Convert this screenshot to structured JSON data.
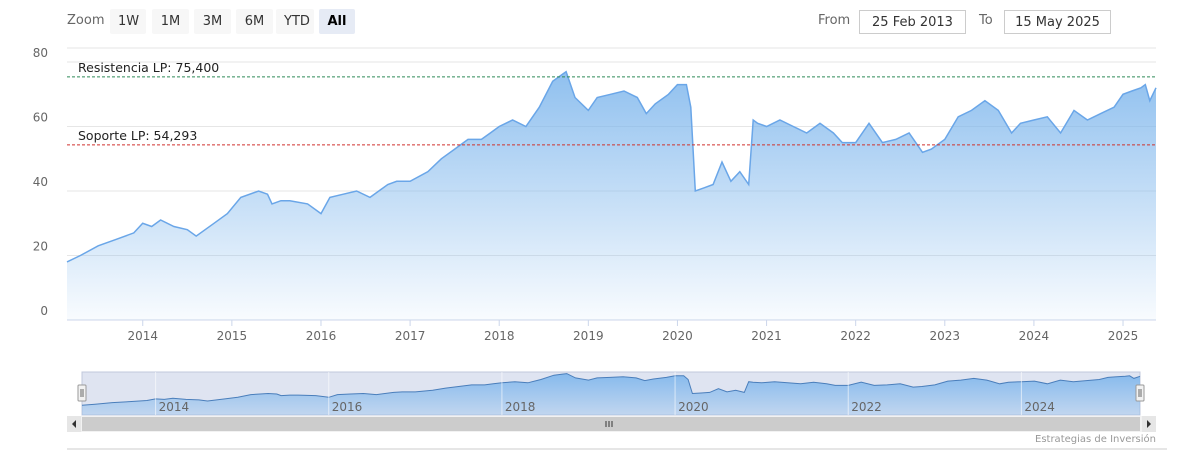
{
  "toolbar": {
    "zoom_label": "Zoom",
    "buttons": [
      "1W",
      "1M",
      "3M",
      "6M",
      "YTD",
      "All"
    ],
    "active": "All",
    "from_label": "From",
    "from_value": "25 Feb 2013",
    "to_label": "To",
    "to_value": "15 May 2025"
  },
  "credits": "Estrategias de Inversión",
  "colors": {
    "area": "#7cb5ec",
    "line": "#6aa6e8",
    "resistance": "#2e8b57",
    "support": "#d0312d",
    "grid": "#e6e6e6"
  },
  "chart_data": {
    "type": "area",
    "xlabel": "",
    "ylabel": "",
    "ylim": [
      0,
      80
    ],
    "yticks": [
      0,
      20,
      40,
      60,
      80
    ],
    "xlim": [
      2013.15,
      2025.37
    ],
    "xticks": [
      "2014",
      "2015",
      "2016",
      "2017",
      "2018",
      "2019",
      "2020",
      "2021",
      "2022",
      "2023",
      "2024",
      "2025"
    ],
    "navigator_ticks": [
      "2014",
      "2016",
      "2018",
      "2020",
      "2022",
      "2024"
    ],
    "plot_lines": [
      {
        "label": "Resistencia LP: 75,400",
        "value": 75.4,
        "style": "dashed",
        "color": "resistance"
      },
      {
        "label": "Soporte LP: 54,293",
        "value": 54.293,
        "style": "dashed",
        "color": "support"
      }
    ],
    "series": [
      {
        "x": [
          2013.15,
          2013.3,
          2013.5,
          2013.7,
          2013.9,
          2014.0,
          2014.1,
          2014.2,
          2014.35,
          2014.5,
          2014.6,
          2014.8,
          2014.95,
          2015.1,
          2015.3,
          2015.4,
          2015.45,
          2015.55,
          2015.65,
          2015.85,
          2016.0,
          2016.1,
          2016.25,
          2016.4,
          2016.55,
          2016.75,
          2016.85,
          2017.0,
          2017.2,
          2017.35,
          2017.5,
          2017.65,
          2017.8,
          2017.9,
          2018.0,
          2018.15,
          2018.3,
          2018.45,
          2018.6,
          2018.7,
          2018.75,
          2018.85,
          2019.0,
          2019.1,
          2019.25,
          2019.4,
          2019.55,
          2019.65,
          2019.75,
          2019.9,
          2020.0,
          2020.1,
          2020.15,
          2020.2,
          2020.3,
          2020.4,
          2020.5,
          2020.6,
          2020.7,
          2020.8,
          2020.85,
          2020.9,
          2021.0,
          2021.15,
          2021.3,
          2021.45,
          2021.6,
          2021.75,
          2021.85,
          2022.0,
          2022.15,
          2022.3,
          2022.45,
          2022.6,
          2022.75,
          2022.85,
          2023.0,
          2023.15,
          2023.3,
          2023.45,
          2023.6,
          2023.75,
          2023.85,
          2024.0,
          2024.15,
          2024.3,
          2024.45,
          2024.6,
          2024.75,
          2024.9,
          2025.0,
          2025.1,
          2025.2,
          2025.25,
          2025.3,
          2025.37
        ],
        "y": [
          18,
          20,
          23,
          25,
          27,
          30,
          29,
          31,
          29,
          28,
          26,
          30,
          33,
          38,
          40,
          39,
          36,
          37,
          37,
          36,
          33,
          38,
          39,
          40,
          38,
          42,
          43,
          43,
          46,
          50,
          53,
          56,
          56,
          58,
          60,
          62,
          60,
          66,
          74,
          76,
          77,
          69,
          65,
          69,
          70,
          71,
          69,
          64,
          67,
          70,
          73,
          73,
          66,
          40,
          41,
          42,
          49,
          43,
          46,
          42,
          62,
          61,
          60,
          62,
          60,
          58,
          61,
          58,
          55,
          55,
          61,
          55,
          56,
          58,
          52,
          53,
          56,
          63,
          65,
          68,
          65,
          58,
          61,
          62,
          63,
          58,
          65,
          62,
          64,
          66,
          70,
          71,
          72,
          73,
          68,
          72
        ]
      }
    ]
  }
}
